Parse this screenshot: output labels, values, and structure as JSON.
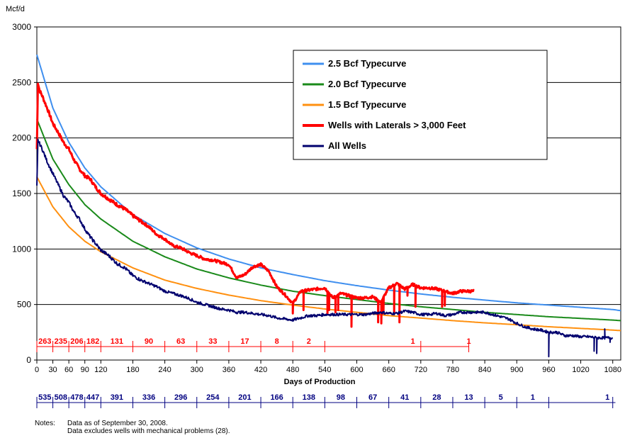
{
  "chart_data": {
    "type": "line",
    "y_unit_label": "Mcf/d",
    "xlabel": "Days of Production",
    "ylabel": "",
    "xlim": [
      0,
      1095
    ],
    "ylim": [
      0,
      3000
    ],
    "x_ticks": [
      0,
      30,
      60,
      90,
      120,
      180,
      240,
      300,
      360,
      420,
      480,
      540,
      600,
      660,
      720,
      780,
      840,
      900,
      960,
      1020,
      1080
    ],
    "y_ticks": [
      0,
      500,
      1000,
      1500,
      2000,
      2500,
      3000
    ],
    "grid": "horizontal",
    "legend_position": "top-right",
    "series": [
      {
        "name": "2.5 Bcf Typecurve",
        "color": "#3f8fef",
        "width": 2,
        "kind": "smooth",
        "x": [
          0,
          30,
          60,
          90,
          120,
          180,
          240,
          300,
          360,
          420,
          480,
          540,
          600,
          660,
          720,
          780,
          840,
          900,
          960,
          1020,
          1080,
          1095
        ],
        "y": [
          2750,
          2270,
          1960,
          1730,
          1560,
          1310,
          1140,
          1010,
          910,
          830,
          770,
          715,
          670,
          630,
          595,
          565,
          540,
          515,
          495,
          475,
          455,
          445
        ]
      },
      {
        "name": "2.0 Bcf Typecurve",
        "color": "#1a8a1a",
        "width": 2,
        "kind": "smooth",
        "x": [
          0,
          30,
          60,
          90,
          120,
          180,
          240,
          300,
          360,
          420,
          480,
          540,
          600,
          660,
          720,
          780,
          840,
          900,
          960,
          1020,
          1080,
          1095
        ],
        "y": [
          2170,
          1810,
          1580,
          1400,
          1270,
          1070,
          930,
          820,
          740,
          675,
          620,
          580,
          545,
          510,
          480,
          455,
          430,
          410,
          390,
          375,
          360,
          355
        ]
      },
      {
        "name": "1.5 Bcf Typecurve",
        "color": "#ff9010",
        "width": 2,
        "kind": "smooth",
        "x": [
          0,
          30,
          60,
          90,
          120,
          180,
          240,
          300,
          360,
          420,
          480,
          540,
          600,
          660,
          720,
          780,
          840,
          900,
          960,
          1020,
          1080,
          1095
        ],
        "y": [
          1650,
          1380,
          1200,
          1070,
          975,
          830,
          720,
          645,
          585,
          535,
          495,
          460,
          430,
          400,
          378,
          355,
          335,
          318,
          300,
          285,
          270,
          265
        ]
      },
      {
        "name": "Wells with Laterals > 3,000 Feet",
        "color": "#ff0000",
        "width": 3,
        "kind": "noisy",
        "x": [
          0,
          2,
          5,
          10,
          20,
          30,
          40,
          50,
          60,
          70,
          80,
          90,
          100,
          110,
          120,
          135,
          150,
          165,
          180,
          195,
          210,
          225,
          240,
          255,
          270,
          285,
          300,
          315,
          330,
          345,
          360,
          375,
          390,
          405,
          420,
          435,
          450,
          465,
          480,
          495,
          510,
          525,
          540,
          555,
          570,
          585,
          600,
          615,
          630,
          645,
          660,
          675,
          690,
          705,
          720,
          735,
          750,
          765,
          780,
          795,
          810,
          820
        ],
        "y": [
          1900,
          2500,
          2430,
          2380,
          2260,
          2130,
          2050,
          1960,
          1900,
          1800,
          1720,
          1660,
          1630,
          1560,
          1500,
          1450,
          1400,
          1360,
          1300,
          1250,
          1200,
          1130,
          1090,
          1030,
          1010,
          970,
          940,
          910,
          900,
          880,
          860,
          740,
          770,
          840,
          860,
          800,
          660,
          590,
          510,
          620,
          630,
          640,
          650,
          560,
          600,
          580,
          560,
          560,
          570,
          520,
          650,
          690,
          640,
          680,
          650,
          650,
          640,
          620,
          600,
          620,
          620,
          620
        ],
        "dips": [
          [
            480,
            420
          ],
          [
            500,
            450
          ],
          [
            545,
            420
          ],
          [
            548,
            450
          ],
          [
            560,
            430
          ],
          [
            565,
            450
          ],
          [
            590,
            300
          ],
          [
            640,
            340
          ],
          [
            646,
            330
          ],
          [
            650,
            420
          ],
          [
            670,
            420
          ],
          [
            680,
            340
          ],
          [
            695,
            580
          ],
          [
            710,
            480
          ],
          [
            760,
            480
          ],
          [
            765,
            490
          ]
        ]
      },
      {
        "name": "All Wells",
        "color": "#00006e",
        "width": 2,
        "kind": "noisy",
        "x": [
          0,
          2,
          5,
          10,
          20,
          30,
          40,
          50,
          60,
          70,
          80,
          90,
          100,
          110,
          120,
          135,
          150,
          165,
          180,
          195,
          210,
          225,
          240,
          255,
          270,
          285,
          300,
          315,
          330,
          345,
          360,
          375,
          390,
          405,
          420,
          435,
          450,
          465,
          480,
          495,
          510,
          525,
          540,
          555,
          570,
          585,
          600,
          615,
          630,
          645,
          660,
          675,
          690,
          705,
          720,
          735,
          750,
          765,
          780,
          795,
          810,
          825,
          840,
          855,
          870,
          885,
          900,
          915,
          930,
          945,
          960,
          975,
          990,
          1005,
          1020,
          1035,
          1050,
          1065,
          1080
        ],
        "y": [
          1560,
          1980,
          1950,
          1900,
          1780,
          1680,
          1580,
          1480,
          1420,
          1330,
          1270,
          1180,
          1110,
          1050,
          990,
          940,
          870,
          830,
          760,
          720,
          690,
          660,
          620,
          600,
          580,
          555,
          520,
          500,
          480,
          460,
          450,
          430,
          430,
          420,
          410,
          400,
          380,
          370,
          360,
          380,
          400,
          400,
          410,
          410,
          410,
          410,
          410,
          410,
          420,
          430,
          420,
          420,
          440,
          430,
          410,
          410,
          420,
          400,
          410,
          430,
          430,
          430,
          430,
          410,
          390,
          370,
          330,
          300,
          280,
          270,
          250,
          250,
          220,
          220,
          210,
          210,
          200,
          200,
          200
        ],
        "dips": [
          [
            960,
            30
          ],
          [
            1045,
            80
          ],
          [
            1050,
            60
          ],
          [
            1065,
            280
          ],
          [
            1075,
            160
          ]
        ]
      }
    ],
    "well_counts_lateral": {
      "color": "#ff0000",
      "x": [
        0,
        30,
        60,
        90,
        120,
        180,
        240,
        300,
        360,
        420,
        480,
        540,
        720,
        810
      ],
      "labels": [
        "263",
        "235",
        "206",
        "182",
        "131",
        "90",
        "63",
        "33",
        "17",
        "8",
        "2",
        "1",
        "1"
      ],
      "label_x": [
        15,
        45,
        75,
        105,
        150,
        210,
        270,
        330,
        390,
        450,
        510,
        705,
        810
      ]
    },
    "well_counts_all": {
      "color": "#000080",
      "x": [
        0,
        30,
        60,
        90,
        120,
        180,
        240,
        300,
        360,
        420,
        480,
        540,
        600,
        660,
        720,
        780,
        840,
        900,
        960,
        1080
      ],
      "labels": [
        "535",
        "508",
        "478",
        "447",
        "391",
        "336",
        "296",
        "254",
        "201",
        "166",
        "138",
        "98",
        "67",
        "41",
        "28",
        "13",
        "5",
        "1",
        "1"
      ],
      "label_x": [
        15,
        45,
        75,
        105,
        150,
        210,
        270,
        330,
        390,
        450,
        510,
        570,
        630,
        690,
        750,
        810,
        870,
        930,
        1070
      ]
    }
  },
  "notes": {
    "label": "Notes:",
    "line1": "Data as of September 30, 2008.",
    "line2": "Data excludes wells with mechanical problems (28)."
  }
}
